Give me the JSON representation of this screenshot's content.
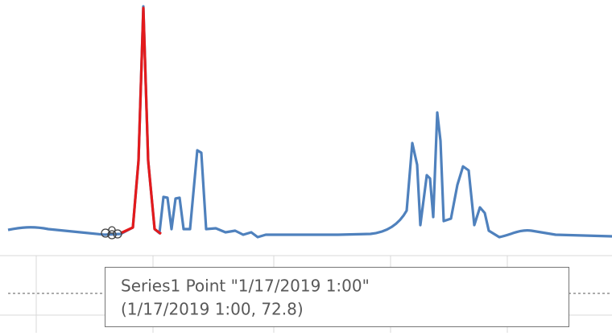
{
  "tooltip": {
    "lines": [
      "Series1 Point \"1/17/2019 1:00\"",
      "(1/17/2019 1:00, 72.8)"
    ]
  }
}
